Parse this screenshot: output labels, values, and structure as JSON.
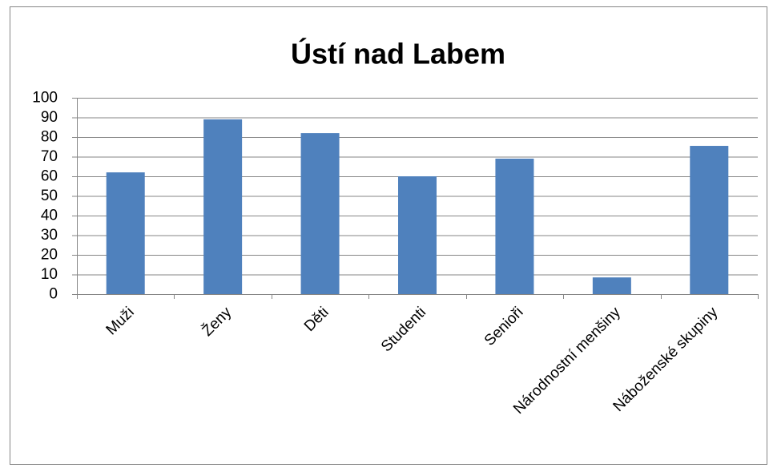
{
  "chart_data": {
    "type": "bar",
    "title": "Ústí nad Labem",
    "categories": [
      "Muži",
      "Ženy",
      "Děti",
      "Studenti",
      "Senioři",
      "Národnostní menšiny",
      "Náboženské skupiny"
    ],
    "values": [
      62,
      89,
      82,
      60,
      69,
      8.5,
      75.5
    ],
    "color": "#4f81bd",
    "ylim": [
      0,
      100
    ],
    "yticks": [
      0,
      10,
      20,
      30,
      40,
      50,
      60,
      70,
      80,
      90,
      100
    ],
    "grid": true
  }
}
